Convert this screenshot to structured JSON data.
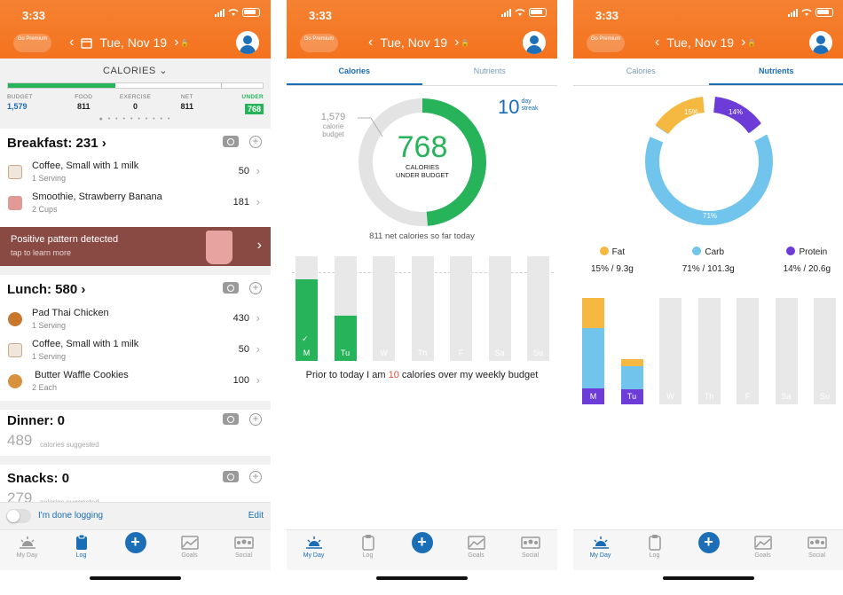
{
  "status_time": "3:33",
  "go_premium": "Go Premium",
  "date": "Tue, Nov 19",
  "tabs": [
    "My Day",
    "Log",
    "",
    "Goals",
    "Social"
  ],
  "screen1": {
    "calories_title": "CALORIES",
    "budget_label": "BUDGET",
    "budget_value": "1,579",
    "food_label": "FOOD",
    "food_value": "811",
    "exercise_label": "EXERCISE",
    "exercise_value": "0",
    "net_label": "NET",
    "net_value": "811",
    "under_label": "UNDER",
    "under_value": "768",
    "progress_fraction": 0.42,
    "breakfast_title": "Breakfast: 231",
    "breakfast_items": [
      {
        "name": "Coffee, Small with 1 milk",
        "serving": "1 Serving",
        "cal": "50"
      },
      {
        "name": "Smoothie, Strawberry Banana",
        "serving": "2 Cups",
        "cal": "181"
      }
    ],
    "pattern_title": "Positive pattern detected",
    "pattern_sub": "tap to learn more",
    "lunch_title": "Lunch: 580",
    "lunch_items": [
      {
        "name": "Pad Thai Chicken",
        "serving": "1 Serving",
        "cal": "430"
      },
      {
        "name": "Coffee, Small with 1 milk",
        "serving": "1 Serving",
        "cal": "50"
      },
      {
        "name": "Butter Waffle Cookies",
        "serving": "2 Each",
        "cal": "100"
      }
    ],
    "dinner_title": "Dinner: 0",
    "dinner_suggest": "489",
    "suggest_label": "calories suggested",
    "snacks_title": "Snacks: 0",
    "snacks_suggest": "279",
    "done_logging": "I'm done logging",
    "edit": "Edit"
  },
  "screen2": {
    "tab_calories": "Calories",
    "tab_nutrients": "Nutrients",
    "budget_value": "1,579",
    "budget_label1": "calorie",
    "budget_label2": "budget",
    "center_value": "768",
    "center_label1": "CALORIES",
    "center_label2": "UNDER BUDGET",
    "streak_value": "10",
    "streak_label1": "day",
    "streak_label2": "streak",
    "net_text": "811 net calories so far today",
    "ring_fraction": 0.4864,
    "days": [
      "M",
      "Tu",
      "W",
      "Th",
      "F",
      "Sa",
      "Su"
    ],
    "day_fill_fraction": [
      0.78,
      0.43,
      0,
      0,
      0,
      0,
      0
    ],
    "prior_text_a": "Prior to today I am ",
    "prior_value": "10",
    "prior_text_b": " calories over my weekly budget",
    "colors": {
      "green": "#27b35a",
      "gray": "#e3e3e3",
      "red": "#e24a3b"
    }
  },
  "screen3": {
    "tab_calories": "Calories",
    "tab_nutrients": "Nutrients",
    "donut_labels": [
      "15%",
      "14%",
      "71%"
    ],
    "fat_name": "Fat",
    "fat_pct": "15% / 9.3g",
    "carb_name": "Carb",
    "carb_pct": "71% / 101.3g",
    "protein_name": "Protein",
    "protein_pct": "14% / 20.6g",
    "days": [
      "M",
      "Tu",
      "W",
      "Th",
      "F",
      "Sa",
      "Su"
    ],
    "colors": {
      "fat": "#f5b942",
      "carb": "#71c4ec",
      "protein": "#6c3bd8"
    }
  }
}
